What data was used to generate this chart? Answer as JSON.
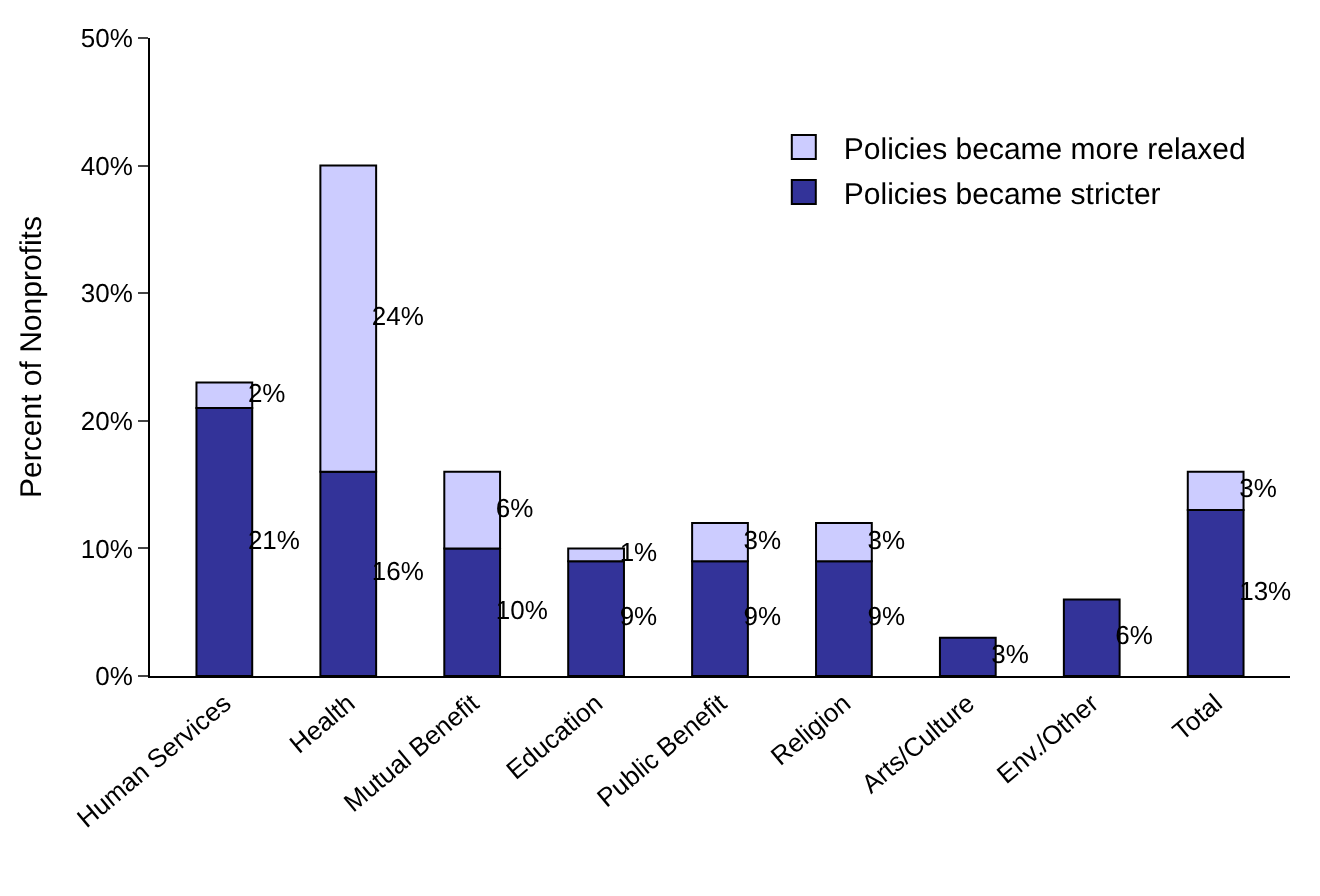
{
  "chart_data": {
    "type": "bar",
    "stacked": true,
    "ylabel": "Percent of Nonprofits",
    "categories": [
      "Human Services",
      "Health",
      "Mutual Benefit",
      "Education",
      "Public Benefit",
      "Religion",
      "Arts/Culture",
      "Env./Other",
      "Total"
    ],
    "series": [
      {
        "name": "Policies became stricter",
        "color": "#333399",
        "values": [
          21,
          16,
          10,
          9,
          9,
          9,
          3,
          6,
          13
        ],
        "value_labels": [
          "21%",
          "16%",
          "10%",
          "9%",
          "9%",
          "9%",
          "3%",
          "6%",
          "13%"
        ]
      },
      {
        "name": "Policies became more relaxed",
        "color": "#ccccff",
        "values": [
          2,
          24,
          6,
          1,
          3,
          3,
          null,
          null,
          3
        ],
        "value_labels": [
          "2%",
          "24%",
          "6%",
          "1%",
          "3%",
          "3%",
          null,
          null,
          "3%"
        ]
      }
    ],
    "ylim": [
      0,
      50
    ],
    "yticks": [
      {
        "value": 0,
        "label": "0%"
      },
      {
        "value": 10,
        "label": "10%"
      },
      {
        "value": 20,
        "label": "20%"
      },
      {
        "value": 30,
        "label": "30%"
      },
      {
        "value": 40,
        "label": "40%"
      },
      {
        "value": 50,
        "label": "50%"
      }
    ],
    "legend": "top right"
  }
}
